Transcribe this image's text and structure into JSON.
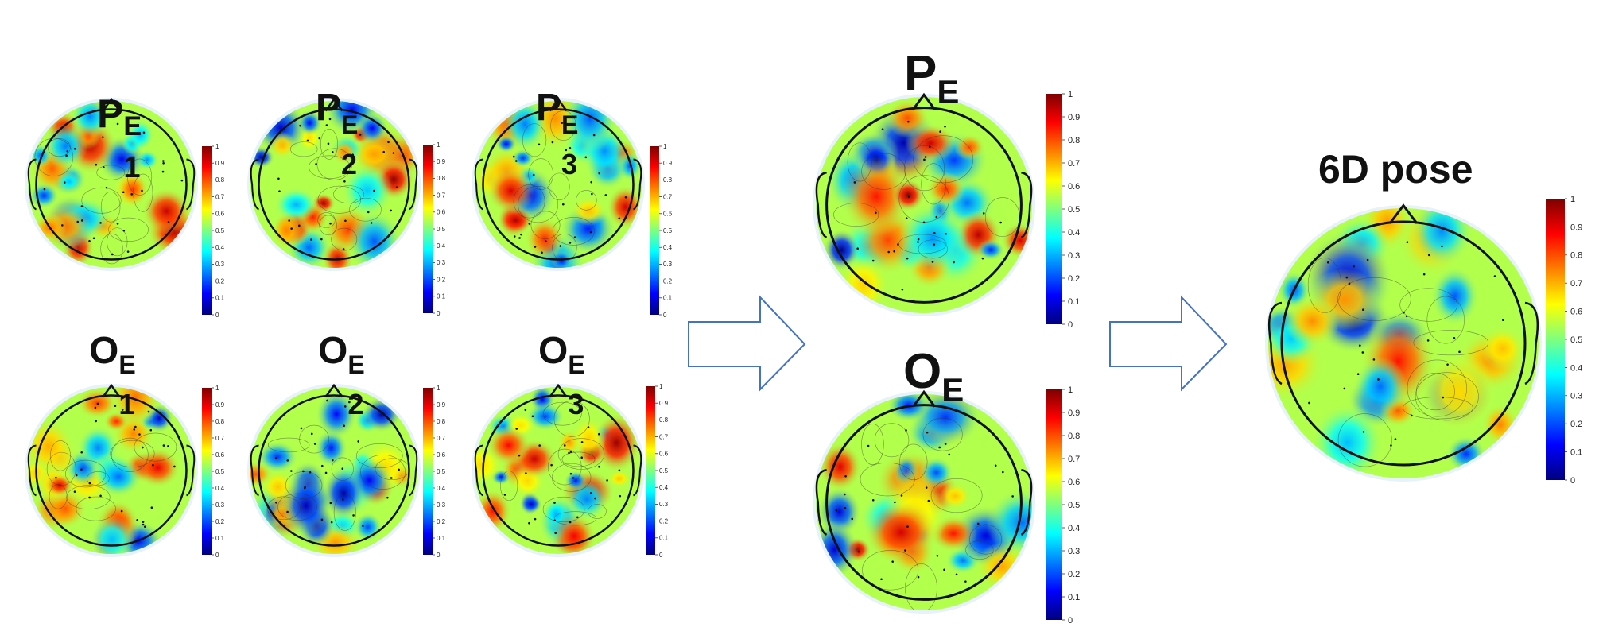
{
  "colors": {
    "arrow_stroke": "#4472C4",
    "head_outline": "#111111",
    "colormap": [
      "#00007f",
      "#0000ff",
      "#007fff",
      "#00ffff",
      "#7fff7f",
      "#ffff00",
      "#ff7f00",
      "#ff0000",
      "#7f0000"
    ]
  },
  "colorbar": {
    "small_ticks": [
      "0",
      "0.1",
      "0.2",
      "0.3",
      "0.4",
      "0.5",
      "0.6",
      "0.7",
      "0.8",
      "0.9",
      "1"
    ],
    "range": [
      0,
      1
    ]
  },
  "maps": [
    {
      "id": "p1",
      "base": "P",
      "sup": "E",
      "sub": "1",
      "seed": 11
    },
    {
      "id": "p2",
      "base": "P",
      "sup": "E",
      "sub": "2",
      "seed": 23
    },
    {
      "id": "p3",
      "base": "P",
      "sup": "E",
      "sub": "3",
      "seed": 37
    },
    {
      "id": "o1",
      "base": "O",
      "sup": "E",
      "sub": "1",
      "seed": 41
    },
    {
      "id": "o2",
      "base": "O",
      "sup": "E",
      "sub": "2",
      "seed": 53
    },
    {
      "id": "o3",
      "base": "O",
      "sup": "E",
      "sub": "3",
      "seed": 67
    },
    {
      "id": "pe",
      "base": "P",
      "sup": "E",
      "sub": "",
      "seed": 71
    },
    {
      "id": "oe",
      "base": "O",
      "sup": "E",
      "sub": "",
      "seed": 83
    },
    {
      "id": "pose",
      "title": "6D pose",
      "seed": 97
    }
  ]
}
